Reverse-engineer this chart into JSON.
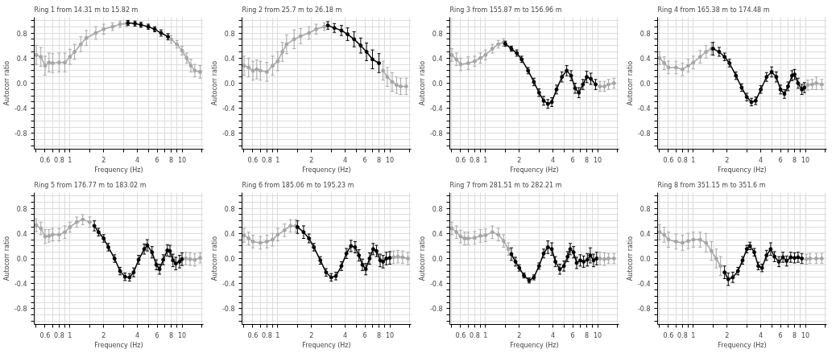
{
  "chart_data": [
    {
      "type": "line",
      "title": "Ring 1 from 14.31 m to 15.82 m",
      "xlabel": "Frequency (Hz)",
      "ylabel": "Autocorr ratio",
      "log": "x",
      "marker": "circle",
      "grid": true,
      "xlim": [
        0.48,
        15.5
      ],
      "ylim": [
        -1.05,
        1.05
      ],
      "xticks": [
        {
          "value": 0.5,
          "label": null
        },
        {
          "value": 0.6,
          "label": "0.6"
        },
        {
          "value": 0.7,
          "label": null
        },
        {
          "value": 0.8,
          "label": "0.8"
        },
        {
          "value": 0.9,
          "label": null
        },
        1,
        {
          "value": 1.5,
          "label": null
        },
        2,
        {
          "value": 3,
          "label": null
        },
        4,
        {
          "value": 5,
          "label": null
        },
        6,
        {
          "value": 7,
          "label": null
        },
        8,
        {
          "value": 9,
          "label": null
        },
        10,
        {
          "value": 15,
          "label": null
        }
      ],
      "yticks": [
        {
          "value": -1.0,
          "label": null
        },
        {
          "value": -0.9,
          "label": null
        },
        {
          "value": -0.8,
          "label": "-0.8"
        },
        {
          "value": -0.7,
          "label": null
        },
        {
          "value": -0.6,
          "label": null
        },
        {
          "value": -0.5,
          "label": null
        },
        {
          "value": -0.4,
          "label": "-0.4"
        },
        {
          "value": -0.3,
          "label": null
        },
        {
          "value": -0.2,
          "label": null
        },
        {
          "value": -0.1,
          "label": null
        },
        {
          "value": 0,
          "label": "0.0"
        },
        {
          "value": 0.1,
          "label": null
        },
        {
          "value": 0.2,
          "label": null
        },
        {
          "value": 0.3,
          "label": null
        },
        {
          "value": 0.4,
          "label": "0.4"
        },
        {
          "value": 0.5,
          "label": null
        },
        {
          "value": 0.6,
          "label": null
        },
        {
          "value": 0.7,
          "label": null
        },
        {
          "value": 0.8,
          "label": "0.8"
        },
        {
          "value": 0.9,
          "label": null
        },
        {
          "value": 1.0,
          "label": null
        }
      ],
      "series": [
        {
          "color": "#a6a6a6",
          "x": [
            0.5,
            0.55,
            0.6,
            0.65,
            0.7,
            0.8,
            0.9,
            1.0,
            1.1,
            1.25,
            1.4,
            1.7,
            2.0,
            2.4,
            2.8,
            3.2
          ],
          "values": [
            0.45,
            0.42,
            0.28,
            0.33,
            0.32,
            0.33,
            0.33,
            0.42,
            0.5,
            0.62,
            0.72,
            0.8,
            0.86,
            0.9,
            0.94,
            0.95
          ],
          "errors": [
            0.15,
            0.15,
            0.15,
            0.15,
            0.15,
            0.15,
            0.15,
            0.12,
            0.12,
            0.12,
            0.12,
            0.1,
            0.08,
            0.06,
            0.05,
            0.05
          ]
        },
        {
          "color": "#000000",
          "x": [
            3.3,
            3.8,
            4.3,
            5.0,
            5.7,
            6.5,
            7.5
          ],
          "values": [
            0.96,
            0.95,
            0.93,
            0.9,
            0.86,
            0.8,
            0.74
          ],
          "errors": [
            0.04,
            0.04,
            0.04,
            0.04,
            0.04,
            0.05,
            0.05
          ]
        },
        {
          "color": "#a6a6a6",
          "x": [
            8,
            9,
            10,
            11,
            12,
            13,
            14.5
          ],
          "values": [
            0.7,
            0.62,
            0.52,
            0.4,
            0.28,
            0.2,
            0.18
          ],
          "errors": [
            0.06,
            0.06,
            0.07,
            0.08,
            0.1,
            0.1,
            0.1
          ]
        }
      ]
    },
    {
      "type": "line",
      "title": "Ring 2 from 25.7 m to 26.18 m",
      "xlabel": "Frequency (Hz)",
      "ylabel": "Autocorr ratio",
      "log": "x",
      "marker": "circle",
      "grid": true,
      "xlim": [
        0.48,
        15.5
      ],
      "ylim": [
        -1.05,
        1.05
      ],
      "xticks": [
        {
          "value": 0.5,
          "label": null
        },
        {
          "value": 0.6,
          "label": "0.6"
        },
        {
          "value": 0.7,
          "label": null
        },
        {
          "value": 0.8,
          "label": "0.8"
        },
        {
          "value": 0.9,
          "label": null
        },
        1,
        {
          "value": 1.5,
          "label": null
        },
        2,
        {
          "value": 3,
          "label": null
        },
        4,
        {
          "value": 5,
          "label": null
        },
        6,
        {
          "value": 7,
          "label": null
        },
        8,
        {
          "value": 9,
          "label": null
        },
        10,
        {
          "value": 15,
          "label": null
        }
      ],
      "yticks": [
        {
          "value": -1.0,
          "label": null
        },
        {
          "value": -0.9,
          "label": null
        },
        {
          "value": -0.8,
          "label": "-0.8"
        },
        {
          "value": -0.7,
          "label": null
        },
        {
          "value": -0.6,
          "label": null
        },
        {
          "value": -0.5,
          "label": null
        },
        {
          "value": -0.4,
          "label": "-0.4"
        },
        {
          "value": -0.3,
          "label": null
        },
        {
          "value": -0.2,
          "label": null
        },
        {
          "value": -0.1,
          "label": null
        },
        {
          "value": 0,
          "label": "0.0"
        },
        {
          "value": 0.1,
          "label": null
        },
        {
          "value": 0.2,
          "label": null
        },
        {
          "value": 0.3,
          "label": null
        },
        {
          "value": 0.4,
          "label": "0.4"
        },
        {
          "value": 0.5,
          "label": null
        },
        {
          "value": 0.6,
          "label": null
        },
        {
          "value": 0.7,
          "label": null
        },
        {
          "value": 0.8,
          "label": "0.8"
        },
        {
          "value": 0.9,
          "label": null
        },
        {
          "value": 1.0,
          "label": null
        }
      ],
      "series": [
        {
          "color": "#a6a6a6",
          "x": [
            0.5,
            0.55,
            0.6,
            0.65,
            0.7,
            0.8,
            0.9,
            1.0,
            1.1,
            1.2,
            1.4,
            1.6,
            1.9,
            2.2,
            2.6
          ],
          "values": [
            0.28,
            0.25,
            0.2,
            0.22,
            0.2,
            0.18,
            0.28,
            0.35,
            0.5,
            0.62,
            0.7,
            0.75,
            0.8,
            0.86,
            0.9
          ],
          "errors": [
            0.15,
            0.15,
            0.15,
            0.15,
            0.15,
            0.15,
            0.15,
            0.15,
            0.15,
            0.15,
            0.15,
            0.12,
            0.1,
            0.08,
            0.06
          ]
        },
        {
          "color": "#000000",
          "x": [
            2.8,
            3.2,
            3.7,
            4.2,
            4.8,
            5.5,
            6.2,
            7.0,
            8.0
          ],
          "values": [
            0.92,
            0.88,
            0.84,
            0.78,
            0.7,
            0.6,
            0.5,
            0.38,
            0.32
          ],
          "errors": [
            0.06,
            0.07,
            0.08,
            0.1,
            0.12,
            0.12,
            0.14,
            0.15,
            0.15
          ]
        },
        {
          "color": "#a6a6a6",
          "x": [
            8.7,
            9.5,
            10.5,
            11.5,
            12.5,
            14
          ],
          "values": [
            0.2,
            0.1,
            0.02,
            -0.03,
            -0.05,
            -0.05
          ],
          "errors": [
            0.15,
            0.15,
            0.15,
            0.13,
            0.13,
            0.13
          ]
        }
      ]
    },
    {
      "type": "line",
      "title": "Ring 3 from 155.87 m to 156.96 m",
      "xlabel": "Frequency (Hz)",
      "ylabel": "Autocorr ratio",
      "log": "x",
      "marker": "circle",
      "grid": true,
      "xlim": [
        0.48,
        15.5
      ],
      "ylim": [
        -1.05,
        1.05
      ],
      "xticks": [
        {
          "value": 0.5,
          "label": null
        },
        {
          "value": 0.6,
          "label": "0.6"
        },
        {
          "value": 0.7,
          "label": null
        },
        {
          "value": 0.8,
          "label": "0.8"
        },
        {
          "value": 0.9,
          "label": null
        },
        1,
        {
          "value": 1.5,
          "label": null
        },
        2,
        {
          "value": 3,
          "label": null
        },
        4,
        {
          "value": 5,
          "label": null
        },
        6,
        {
          "value": 7,
          "label": null
        },
        8,
        {
          "value": 9,
          "label": null
        },
        10,
        {
          "value": 15,
          "label": null
        }
      ],
      "yticks": [
        {
          "value": -1.0,
          "label": null
        },
        {
          "value": -0.9,
          "label": null
        },
        {
          "value": -0.8,
          "label": "-0.8"
        },
        {
          "value": -0.7,
          "label": null
        },
        {
          "value": -0.6,
          "label": null
        },
        {
          "value": -0.5,
          "label": null
        },
        {
          "value": -0.4,
          "label": "-0.4"
        },
        {
          "value": -0.3,
          "label": null
        },
        {
          "value": -0.2,
          "label": null
        },
        {
          "value": -0.1,
          "label": null
        },
        {
          "value": 0,
          "label": "0.0"
        },
        {
          "value": 0.1,
          "label": null
        },
        {
          "value": 0.2,
          "label": null
        },
        {
          "value": 0.3,
          "label": null
        },
        {
          "value": 0.4,
          "label": "0.4"
        },
        {
          "value": 0.5,
          "label": null
        },
        {
          "value": 0.6,
          "label": null
        },
        {
          "value": 0.7,
          "label": null
        },
        {
          "value": 0.8,
          "label": "0.8"
        },
        {
          "value": 0.9,
          "label": null
        },
        {
          "value": 1.0,
          "label": null
        }
      ],
      "series": [
        {
          "color": "#a6a6a6",
          "x": [
            0.5,
            0.55,
            0.6,
            0.7,
            0.8,
            0.9,
            1.0,
            1.15,
            1.3,
            1.45
          ],
          "values": [
            0.45,
            0.38,
            0.3,
            0.32,
            0.35,
            0.4,
            0.45,
            0.55,
            0.62,
            0.65
          ],
          "errors": [
            0.1,
            0.1,
            0.1,
            0.1,
            0.08,
            0.08,
            0.08,
            0.07,
            0.06,
            0.06
          ]
        },
        {
          "color": "#000000",
          "x": [
            1.5,
            1.7,
            1.9,
            2.1,
            2.4,
            2.7,
            3.0,
            3.3,
            3.6,
            3.9,
            4.3,
            4.8,
            5.3,
            5.8,
            6.3,
            6.8,
            7.4,
            8.0,
            8.7,
            9.6
          ],
          "values": [
            0.63,
            0.55,
            0.48,
            0.38,
            0.2,
            0.02,
            -0.15,
            -0.28,
            -0.33,
            -0.3,
            -0.1,
            0.1,
            0.2,
            0.12,
            -0.08,
            -0.15,
            -0.02,
            0.1,
            0.07,
            -0.02
          ],
          "errors": [
            0.04,
            0.04,
            0.05,
            0.05,
            0.05,
            0.06,
            0.06,
            0.07,
            0.07,
            0.07,
            0.07,
            0.08,
            0.08,
            0.08,
            0.08,
            0.08,
            0.08,
            0.09,
            0.09,
            0.08
          ]
        },
        {
          "color": "#a6a6a6",
          "x": [
            10.5,
            11.5,
            12.5,
            14
          ],
          "values": [
            -0.05,
            -0.05,
            -0.02,
            0.0
          ],
          "errors": [
            0.08,
            0.08,
            0.08,
            0.08
          ]
        }
      ]
    },
    {
      "type": "line",
      "title": "Ring 4 from 165.38 m to 174.48 m",
      "xlabel": "Frequency (Hz)",
      "ylabel": "Autocorr ratio",
      "log": "x",
      "marker": "circle",
      "grid": true,
      "xlim": [
        0.48,
        15.5
      ],
      "ylim": [
        -1.05,
        1.05
      ],
      "xticks": [
        {
          "value": 0.5,
          "label": null
        },
        {
          "value": 0.6,
          "label": "0.6"
        },
        {
          "value": 0.7,
          "label": null
        },
        {
          "value": 0.8,
          "label": "0.8"
        },
        {
          "value": 0.9,
          "label": null
        },
        1,
        {
          "value": 1.5,
          "label": null
        },
        2,
        {
          "value": 3,
          "label": null
        },
        4,
        {
          "value": 5,
          "label": null
        },
        6,
        {
          "value": 7,
          "label": null
        },
        8,
        {
          "value": 9,
          "label": null
        },
        10,
        {
          "value": 15,
          "label": null
        }
      ],
      "yticks": [
        {
          "value": -1.0,
          "label": null
        },
        {
          "value": -0.9,
          "label": null
        },
        {
          "value": -0.8,
          "label": "-0.8"
        },
        {
          "value": -0.7,
          "label": null
        },
        {
          "value": -0.6,
          "label": null
        },
        {
          "value": -0.5,
          "label": null
        },
        {
          "value": -0.4,
          "label": "-0.4"
        },
        {
          "value": -0.3,
          "label": null
        },
        {
          "value": -0.2,
          "label": null
        },
        {
          "value": -0.1,
          "label": null
        },
        {
          "value": 0,
          "label": "0.0"
        },
        {
          "value": 0.1,
          "label": null
        },
        {
          "value": 0.2,
          "label": null
        },
        {
          "value": 0.3,
          "label": null
        },
        {
          "value": 0.4,
          "label": "0.4"
        },
        {
          "value": 0.5,
          "label": null
        },
        {
          "value": 0.6,
          "label": null
        },
        {
          "value": 0.7,
          "label": null
        },
        {
          "value": 0.8,
          "label": "0.8"
        },
        {
          "value": 0.9,
          "label": null
        },
        {
          "value": 1.0,
          "label": null
        }
      ],
      "series": [
        {
          "color": "#a6a6a6",
          "x": [
            0.5,
            0.55,
            0.6,
            0.7,
            0.8,
            0.9,
            1.0,
            1.15,
            1.3,
            1.45
          ],
          "values": [
            0.4,
            0.32,
            0.25,
            0.25,
            0.22,
            0.28,
            0.33,
            0.42,
            0.5,
            0.55
          ],
          "errors": [
            0.1,
            0.1,
            0.1,
            0.1,
            0.1,
            0.1,
            0.1,
            0.1,
            0.1,
            0.1
          ]
        },
        {
          "color": "#000000",
          "x": [
            1.5,
            1.7,
            1.9,
            2.1,
            2.4,
            2.7,
            3.0,
            3.3,
            3.6,
            4.0,
            4.5,
            5.0,
            5.5,
            6.0,
            6.5,
            7.0,
            7.6,
            8.0,
            8.6,
            9.3,
            9.8
          ],
          "values": [
            0.55,
            0.5,
            0.42,
            0.32,
            0.12,
            -0.07,
            -0.22,
            -0.3,
            -0.28,
            -0.1,
            0.1,
            0.18,
            0.1,
            -0.1,
            -0.17,
            -0.05,
            0.12,
            0.14,
            0.0,
            -0.1,
            -0.07
          ],
          "errors": [
            0.1,
            0.07,
            0.06,
            0.06,
            0.06,
            0.06,
            0.06,
            0.06,
            0.06,
            0.06,
            0.07,
            0.08,
            0.08,
            0.07,
            0.07,
            0.07,
            0.08,
            0.08,
            0.08,
            0.08,
            0.08
          ]
        },
        {
          "color": "#a6a6a6",
          "x": [
            10.5,
            11.5,
            12.5,
            14
          ],
          "values": [
            -0.03,
            -0.02,
            0.0,
            -0.02
          ],
          "errors": [
            0.08,
            0.08,
            0.1,
            0.08
          ]
        }
      ]
    },
    {
      "type": "line",
      "title": "Ring 5 from 176.77 m to 183.02 m",
      "xlabel": "Frequency (Hz)",
      "ylabel": "Autocorr ratio",
      "log": "x",
      "marker": "circle",
      "grid": true,
      "xlim": [
        0.48,
        15.5
      ],
      "ylim": [
        -1.05,
        1.05
      ],
      "xticks": [
        {
          "value": 0.5,
          "label": null
        },
        {
          "value": 0.6,
          "label": "0.6"
        },
        {
          "value": 0.7,
          "label": null
        },
        {
          "value": 0.8,
          "label": "0.8"
        },
        {
          "value": 0.9,
          "label": null
        },
        1,
        {
          "value": 1.5,
          "label": null
        },
        2,
        {
          "value": 3,
          "label": null
        },
        4,
        {
          "value": 5,
          "label": null
        },
        6,
        {
          "value": 7,
          "label": null
        },
        8,
        {
          "value": 9,
          "label": null
        },
        10,
        {
          "value": 15,
          "label": null
        }
      ],
      "yticks": [
        {
          "value": -1.0,
          "label": null
        },
        {
          "value": -0.9,
          "label": null
        },
        {
          "value": -0.8,
          "label": "-0.8"
        },
        {
          "value": -0.7,
          "label": null
        },
        {
          "value": -0.6,
          "label": null
        },
        {
          "value": -0.5,
          "label": null
        },
        {
          "value": -0.4,
          "label": "-0.4"
        },
        {
          "value": -0.3,
          "label": null
        },
        {
          "value": -0.2,
          "label": null
        },
        {
          "value": -0.1,
          "label": null
        },
        {
          "value": 0,
          "label": "0.0"
        },
        {
          "value": 0.1,
          "label": null
        },
        {
          "value": 0.2,
          "label": null
        },
        {
          "value": 0.3,
          "label": null
        },
        {
          "value": 0.4,
          "label": "0.4"
        },
        {
          "value": 0.5,
          "label": null
        },
        {
          "value": 0.6,
          "label": null
        },
        {
          "value": 0.7,
          "label": null
        },
        {
          "value": 0.8,
          "label": "0.8"
        },
        {
          "value": 0.9,
          "label": null
        },
        {
          "value": 1.0,
          "label": null
        }
      ],
      "series": [
        {
          "color": "#a6a6a6",
          "x": [
            0.5,
            0.55,
            0.6,
            0.65,
            0.7,
            0.8,
            0.9,
            1.0,
            1.15,
            1.3,
            1.5
          ],
          "values": [
            0.53,
            0.48,
            0.35,
            0.36,
            0.38,
            0.38,
            0.42,
            0.5,
            0.58,
            0.62,
            0.58
          ],
          "errors": [
            0.1,
            0.1,
            0.11,
            0.1,
            0.1,
            0.1,
            0.1,
            0.08,
            0.08,
            0.08,
            0.08
          ]
        },
        {
          "color": "#000000",
          "x": [
            1.65,
            1.8,
            2.0,
            2.2,
            2.5,
            2.8,
            3.1,
            3.4,
            3.7,
            4.1,
            4.6,
            4.9,
            5.4,
            5.9,
            6.3,
            6.8,
            7.4,
            7.8,
            8.3,
            8.8,
            9.5,
            10
          ],
          "values": [
            0.52,
            0.42,
            0.32,
            0.18,
            0.0,
            -0.2,
            -0.29,
            -0.3,
            -0.22,
            -0.02,
            0.15,
            0.21,
            0.1,
            -0.1,
            -0.17,
            -0.02,
            0.13,
            0.12,
            -0.03,
            -0.08,
            -0.05,
            -0.01
          ],
          "errors": [
            0.08,
            0.06,
            0.06,
            0.06,
            0.06,
            0.06,
            0.06,
            0.06,
            0.07,
            0.07,
            0.08,
            0.09,
            0.09,
            0.08,
            0.08,
            0.08,
            0.09,
            0.09,
            0.1,
            0.1,
            0.1,
            0.1
          ]
        },
        {
          "color": "#a6a6a6",
          "x": [
            10.8,
            11.8,
            13,
            14.5
          ],
          "values": [
            0.0,
            -0.01,
            -0.02,
            0.01
          ],
          "errors": [
            0.1,
            0.1,
            0.1,
            0.08
          ]
        }
      ]
    },
    {
      "type": "line",
      "title": "Ring 6 from 185.06 m to 195.23 m",
      "xlabel": "Frequency (Hz)",
      "ylabel": "Autocorr ratio",
      "log": "x",
      "marker": "circle",
      "grid": true,
      "xlim": [
        0.48,
        15.5
      ],
      "ylim": [
        -1.05,
        1.05
      ],
      "xticks": [
        {
          "value": 0.5,
          "label": null
        },
        {
          "value": 0.6,
          "label": "0.6"
        },
        {
          "value": 0.7,
          "label": null
        },
        {
          "value": 0.8,
          "label": "0.8"
        },
        {
          "value": 0.9,
          "label": null
        },
        1,
        {
          "value": 1.5,
          "label": null
        },
        2,
        {
          "value": 3,
          "label": null
        },
        4,
        {
          "value": 5,
          "label": null
        },
        6,
        {
          "value": 7,
          "label": null
        },
        8,
        {
          "value": 9,
          "label": null
        },
        10,
        {
          "value": 15,
          "label": null
        }
      ],
      "yticks": [
        {
          "value": -1.0,
          "label": null
        },
        {
          "value": -0.9,
          "label": null
        },
        {
          "value": -0.8,
          "label": "-0.8"
        },
        {
          "value": -0.7,
          "label": null
        },
        {
          "value": -0.6,
          "label": null
        },
        {
          "value": -0.5,
          "label": null
        },
        {
          "value": -0.4,
          "label": "-0.4"
        },
        {
          "value": -0.3,
          "label": null
        },
        {
          "value": -0.2,
          "label": null
        },
        {
          "value": -0.1,
          "label": null
        },
        {
          "value": 0,
          "label": "0.0"
        },
        {
          "value": 0.1,
          "label": null
        },
        {
          "value": 0.2,
          "label": null
        },
        {
          "value": 0.3,
          "label": null
        },
        {
          "value": 0.4,
          "label": "0.4"
        },
        {
          "value": 0.5,
          "label": null
        },
        {
          "value": 0.6,
          "label": null
        },
        {
          "value": 0.7,
          "label": null
        },
        {
          "value": 0.8,
          "label": "0.8"
        },
        {
          "value": 0.9,
          "label": null
        },
        {
          "value": 1.0,
          "label": null
        }
      ],
      "series": [
        {
          "color": "#a6a6a6",
          "x": [
            0.5,
            0.55,
            0.6,
            0.7,
            0.8,
            0.9,
            1.0,
            1.15,
            1.3,
            1.45
          ],
          "values": [
            0.37,
            0.32,
            0.27,
            0.25,
            0.27,
            0.3,
            0.38,
            0.45,
            0.52,
            0.52
          ],
          "errors": [
            0.11,
            0.1,
            0.1,
            0.1,
            0.1,
            0.1,
            0.1,
            0.1,
            0.1,
            0.1
          ]
        },
        {
          "color": "#000000",
          "x": [
            1.5,
            1.7,
            1.9,
            2.1,
            2.4,
            2.7,
            3.0,
            3.3,
            3.7,
            4.1,
            4.5,
            4.9,
            5.3,
            5.7,
            6.1,
            6.6,
            7.1,
            7.6,
            8.2,
            8.7,
            9.3,
            10
          ],
          "values": [
            0.5,
            0.42,
            0.32,
            0.18,
            -0.03,
            -0.22,
            -0.3,
            -0.28,
            -0.12,
            0.08,
            0.2,
            0.18,
            0.05,
            -0.1,
            -0.17,
            0.0,
            0.15,
            0.12,
            -0.03,
            -0.05,
            0.0,
            0.01
          ],
          "errors": [
            0.1,
            0.1,
            0.07,
            0.06,
            0.06,
            0.06,
            0.06,
            0.06,
            0.07,
            0.08,
            0.09,
            0.09,
            0.09,
            0.09,
            0.09,
            0.09,
            0.09,
            0.09,
            0.1,
            0.1,
            0.1,
            0.1
          ]
        },
        {
          "color": "#a6a6a6",
          "x": [
            10.8,
            11.8,
            13,
            14.5
          ],
          "values": [
            0.02,
            0.03,
            0.02,
            0.0
          ],
          "errors": [
            0.1,
            0.1,
            0.1,
            0.1
          ]
        }
      ]
    },
    {
      "type": "line",
      "title": "Ring 7 from 281.51 m to 282.21 m",
      "xlabel": "Frequency (Hz)",
      "ylabel": "Autocorr ratio",
      "log": "x",
      "marker": "circle",
      "grid": true,
      "xlim": [
        0.48,
        15.5
      ],
      "ylim": [
        -1.05,
        1.05
      ],
      "xticks": [
        {
          "value": 0.5,
          "label": null
        },
        {
          "value": 0.6,
          "label": "0.6"
        },
        {
          "value": 0.7,
          "label": null
        },
        {
          "value": 0.8,
          "label": "0.8"
        },
        {
          "value": 0.9,
          "label": null
        },
        1,
        {
          "value": 1.5,
          "label": null
        },
        2,
        {
          "value": 3,
          "label": null
        },
        4,
        {
          "value": 5,
          "label": null
        },
        6,
        {
          "value": 7,
          "label": null
        },
        8,
        {
          "value": 9,
          "label": null
        },
        10,
        {
          "value": 15,
          "label": null
        }
      ],
      "yticks": [
        {
          "value": -1.0,
          "label": null
        },
        {
          "value": -0.9,
          "label": null
        },
        {
          "value": -0.8,
          "label": "-0.8"
        },
        {
          "value": -0.7,
          "label": null
        },
        {
          "value": -0.6,
          "label": null
        },
        {
          "value": -0.5,
          "label": null
        },
        {
          "value": -0.4,
          "label": "-0.4"
        },
        {
          "value": -0.3,
          "label": null
        },
        {
          "value": -0.2,
          "label": null
        },
        {
          "value": -0.1,
          "label": null
        },
        {
          "value": 0,
          "label": "0.0"
        },
        {
          "value": 0.1,
          "label": null
        },
        {
          "value": 0.2,
          "label": null
        },
        {
          "value": 0.3,
          "label": null
        },
        {
          "value": 0.4,
          "label": "0.4"
        },
        {
          "value": 0.5,
          "label": null
        },
        {
          "value": 0.6,
          "label": null
        },
        {
          "value": 0.7,
          "label": null
        },
        {
          "value": 0.8,
          "label": "0.8"
        },
        {
          "value": 0.9,
          "label": null
        },
        {
          "value": 1.0,
          "label": null
        }
      ],
      "series": [
        {
          "color": "#a6a6a6",
          "x": [
            0.5,
            0.55,
            0.6,
            0.65,
            0.7,
            0.8,
            0.9,
            1.0,
            1.15,
            1.3,
            1.45,
            1.6
          ],
          "values": [
            0.48,
            0.42,
            0.35,
            0.32,
            0.32,
            0.33,
            0.36,
            0.37,
            0.42,
            0.38,
            0.28,
            0.15
          ],
          "errors": [
            0.1,
            0.1,
            0.1,
            0.1,
            0.1,
            0.1,
            0.1,
            0.1,
            0.1,
            0.1,
            0.1,
            0.1
          ]
        },
        {
          "color": "#000000",
          "x": [
            1.7,
            1.85,
            2.0,
            2.2,
            2.45,
            2.7,
            3.0,
            3.3,
            3.6,
            3.9,
            4.2,
            4.6,
            5.0,
            5.4,
            5.7,
            6.1,
            6.5,
            7.0,
            7.5,
            8.1,
            8.6,
            9.2,
            9.8
          ],
          "values": [
            0.07,
            -0.05,
            -0.15,
            -0.27,
            -0.35,
            -0.3,
            -0.12,
            0.08,
            0.18,
            0.15,
            -0.05,
            -0.17,
            -0.12,
            0.03,
            0.15,
            0.1,
            -0.07,
            -0.03,
            -0.05,
            -0.02,
            0.05,
            -0.03,
            0.0
          ],
          "errors": [
            0.1,
            0.07,
            0.05,
            0.04,
            0.04,
            0.04,
            0.05,
            0.07,
            0.1,
            0.1,
            0.08,
            0.08,
            0.08,
            0.08,
            0.09,
            0.09,
            0.09,
            0.09,
            0.09,
            0.1,
            0.12,
            0.1,
            0.1
          ]
        },
        {
          "color": "#a6a6a6",
          "x": [
            10.5,
            11.5,
            12.5,
            14
          ],
          "values": [
            0.0,
            -0.01,
            0.0,
            0.0
          ],
          "errors": [
            0.1,
            0.1,
            0.08,
            0.08
          ]
        }
      ]
    },
    {
      "type": "line",
      "title": "Ring 8 from 351.15 m to 351.6 m",
      "xlabel": "Frequency (Hz)",
      "ylabel": "Autocorr ratio",
      "log": "x",
      "marker": "circle",
      "grid": true,
      "xlim": [
        0.48,
        15.5
      ],
      "ylim": [
        -1.05,
        1.05
      ],
      "xticks": [
        {
          "value": 0.5,
          "label": null
        },
        {
          "value": 0.6,
          "label": "0.6"
        },
        {
          "value": 0.7,
          "label": null
        },
        {
          "value": 0.8,
          "label": "0.8"
        },
        {
          "value": 0.9,
          "label": null
        },
        1,
        {
          "value": 1.5,
          "label": null
        },
        2,
        {
          "value": 3,
          "label": null
        },
        4,
        {
          "value": 5,
          "label": null
        },
        6,
        {
          "value": 7,
          "label": null
        },
        8,
        {
          "value": 9,
          "label": null
        },
        10,
        {
          "value": 15,
          "label": null
        }
      ],
      "yticks": [
        {
          "value": -1.0,
          "label": null
        },
        {
          "value": -0.9,
          "label": null
        },
        {
          "value": -0.8,
          "label": "-0.8"
        },
        {
          "value": -0.7,
          "label": null
        },
        {
          "value": -0.6,
          "label": null
        },
        {
          "value": -0.5,
          "label": null
        },
        {
          "value": -0.4,
          "label": "-0.4"
        },
        {
          "value": -0.3,
          "label": null
        },
        {
          "value": -0.2,
          "label": null
        },
        {
          "value": -0.1,
          "label": null
        },
        {
          "value": 0,
          "label": "0.0"
        },
        {
          "value": 0.1,
          "label": null
        },
        {
          "value": 0.2,
          "label": null
        },
        {
          "value": 0.3,
          "label": null
        },
        {
          "value": 0.4,
          "label": "0.4"
        },
        {
          "value": 0.5,
          "label": null
        },
        {
          "value": 0.6,
          "label": null
        },
        {
          "value": 0.7,
          "label": null
        },
        {
          "value": 0.8,
          "label": "0.8"
        },
        {
          "value": 0.9,
          "label": null
        },
        {
          "value": 1.0,
          "label": null
        }
      ],
      "series": [
        {
          "color": "#a6a6a6",
          "x": [
            0.5,
            0.55,
            0.6,
            0.7,
            0.8,
            0.9,
            1.0,
            1.15,
            1.3,
            1.45,
            1.6,
            1.75
          ],
          "values": [
            0.42,
            0.38,
            0.3,
            0.27,
            0.25,
            0.28,
            0.3,
            0.3,
            0.25,
            0.12,
            0.0,
            -0.12
          ],
          "errors": [
            0.12,
            0.12,
            0.12,
            0.12,
            0.12,
            0.12,
            0.12,
            0.12,
            0.15,
            0.15,
            0.15,
            0.15
          ]
        },
        {
          "color": "#000000",
          "x": [
            1.9,
            2.05,
            2.25,
            2.5,
            2.75,
            3.0,
            3.2,
            3.5,
            3.8,
            4.1,
            4.5,
            4.9,
            5.3,
            5.8,
            6.3,
            6.8,
            7.4,
            8.0,
            8.6,
            9.3
          ],
          "values": [
            -0.22,
            -0.33,
            -0.3,
            -0.2,
            -0.03,
            0.15,
            0.2,
            0.1,
            -0.12,
            -0.15,
            0.05,
            0.15,
            0.03,
            -0.05,
            0.02,
            -0.04,
            0.02,
            0.01,
            0.02,
            0.0
          ],
          "errors": [
            0.1,
            0.1,
            0.08,
            0.06,
            0.06,
            0.06,
            0.06,
            0.06,
            0.06,
            0.06,
            0.08,
            0.1,
            0.08,
            0.08,
            0.08,
            0.08,
            0.08,
            0.08,
            0.08,
            0.08
          ]
        },
        {
          "color": "#a6a6a6",
          "x": [
            10.2,
            11,
            12.5,
            14
          ],
          "values": [
            -0.01,
            0.0,
            0.0,
            0.0
          ],
          "errors": [
            0.08,
            0.08,
            0.08,
            0.08
          ]
        }
      ]
    }
  ]
}
